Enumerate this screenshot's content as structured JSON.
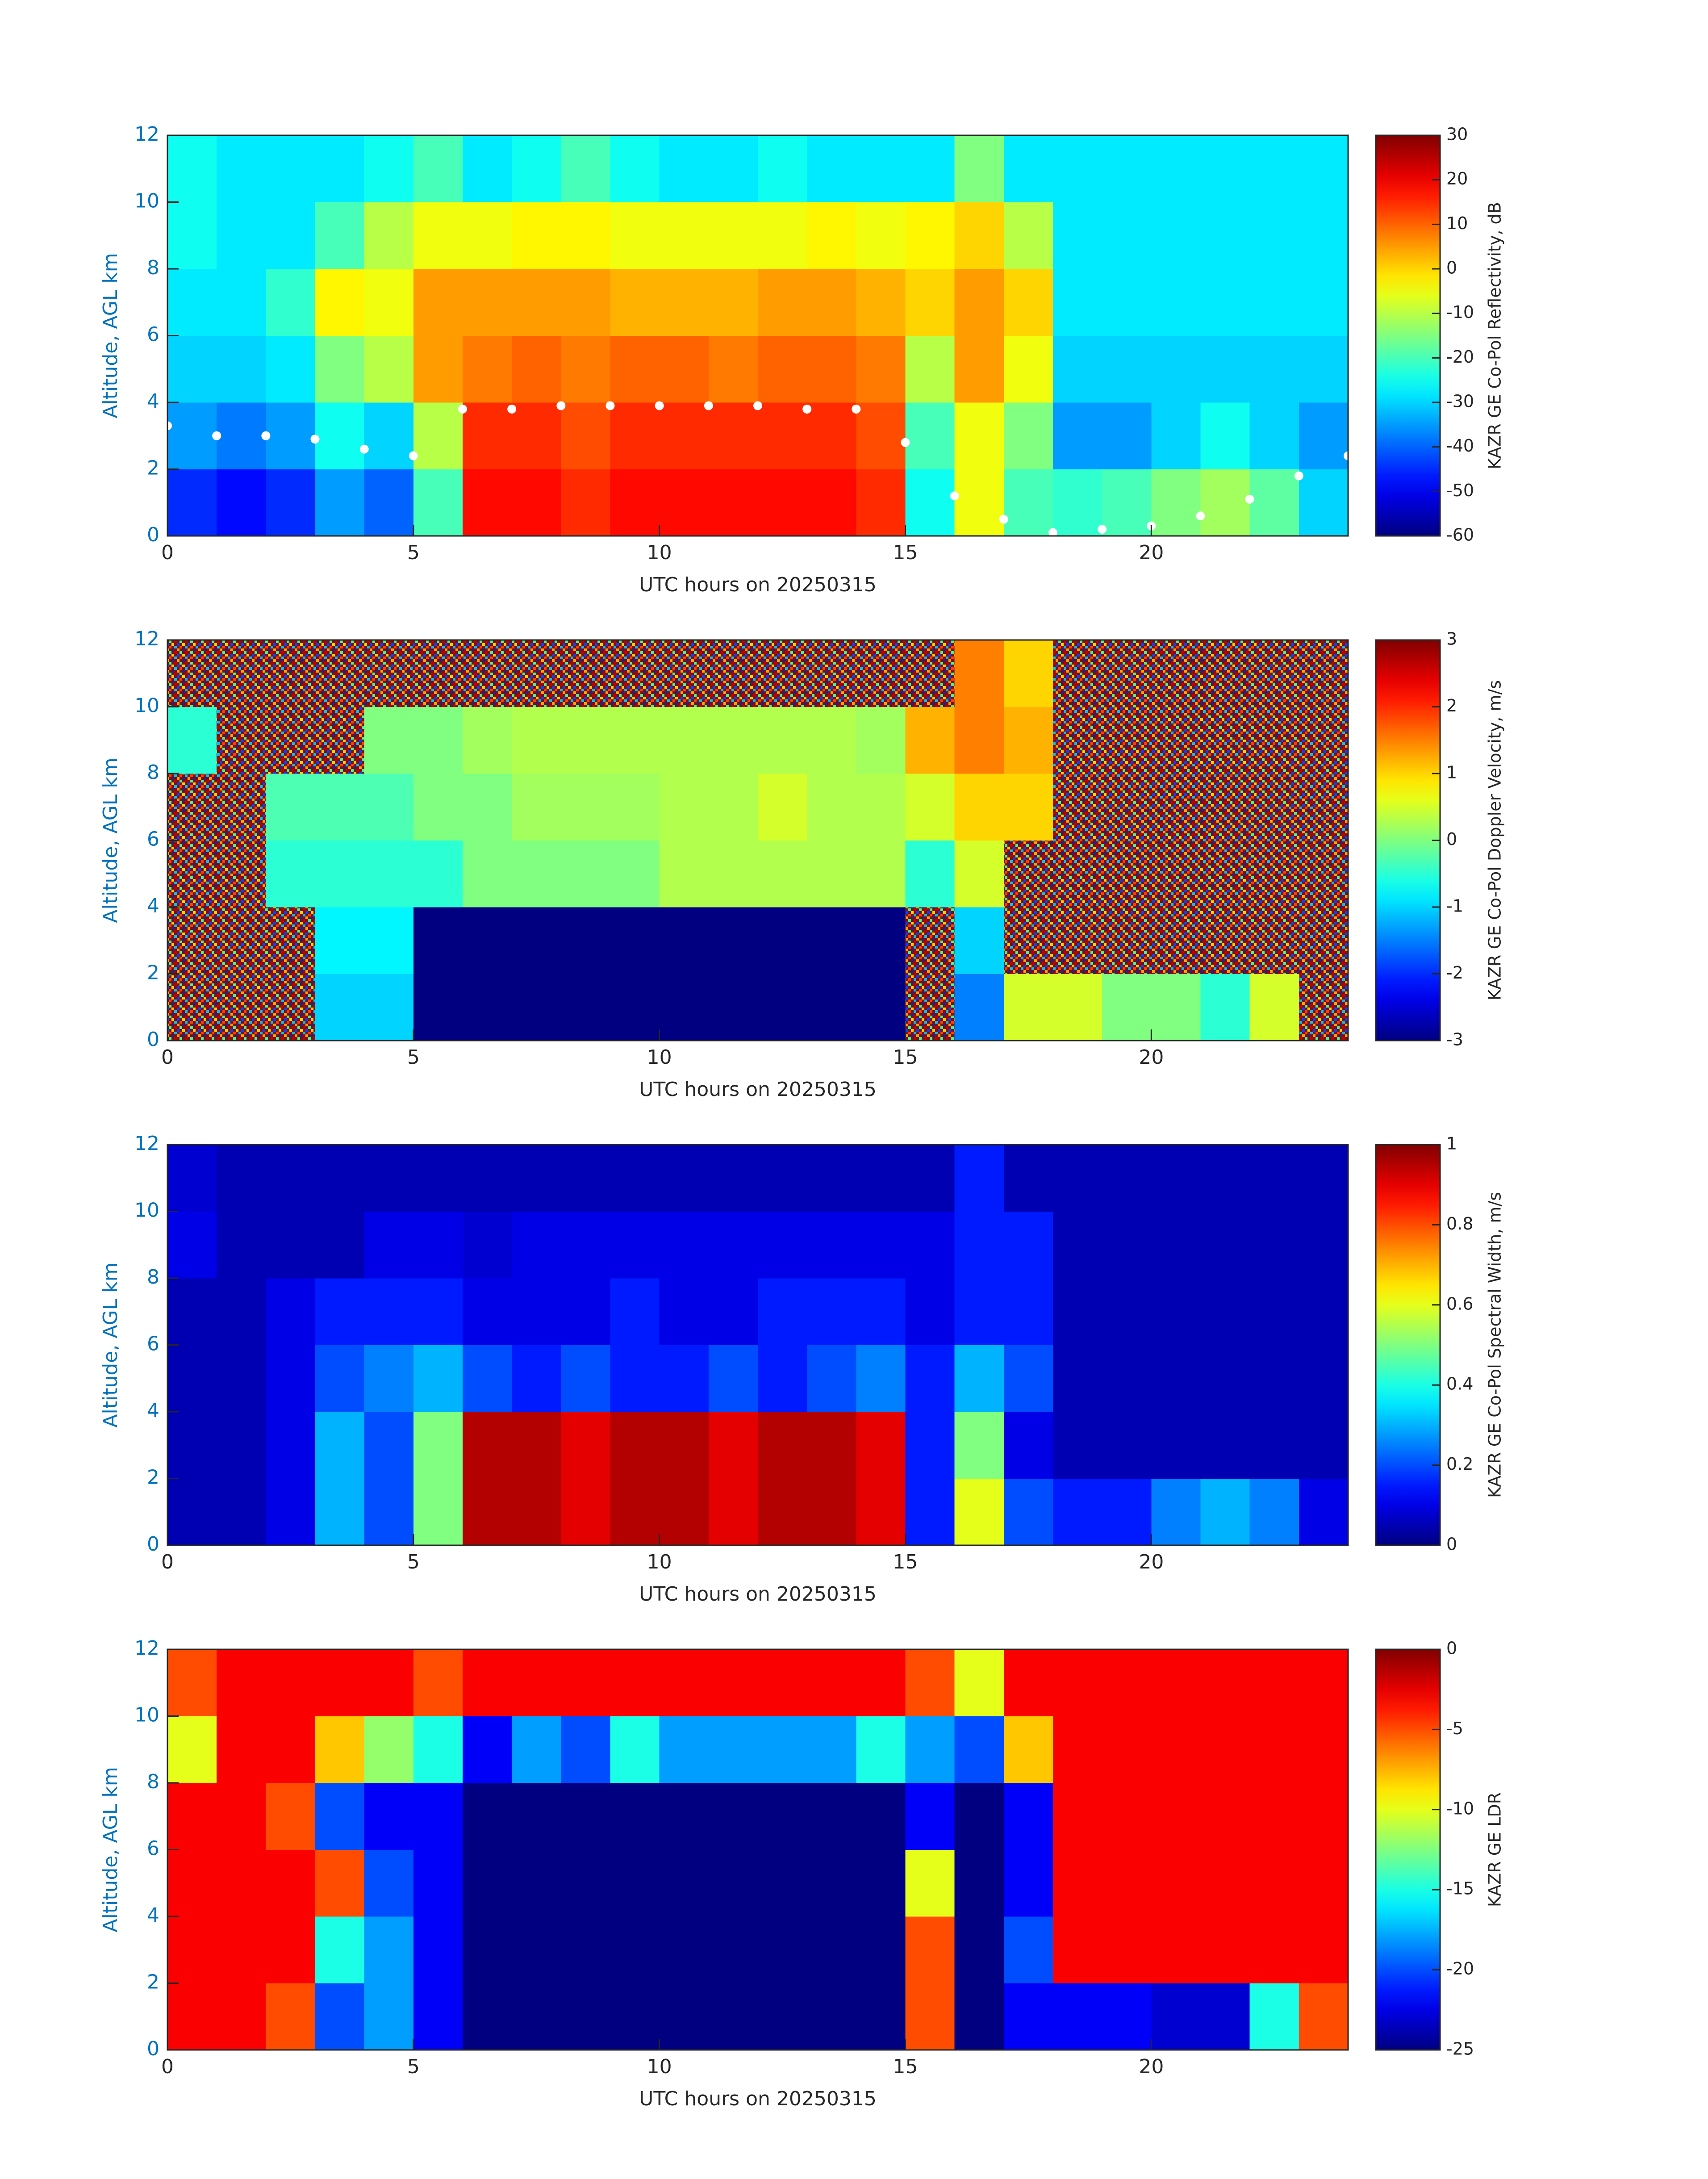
{
  "chart_data": [
    {
      "type": "heatmap",
      "colormap": "jet",
      "xlabel": "UTC hours on 20250315",
      "ylabel": "Altitude, AGL km",
      "xlim": [
        0,
        24
      ],
      "xticks": [
        0,
        5,
        10,
        15,
        20
      ],
      "ylim": [
        0,
        12
      ],
      "yticks": [
        0,
        2,
        4,
        6,
        8,
        10,
        12
      ],
      "xbins": [
        0,
        1,
        2,
        3,
        4,
        5,
        6,
        7,
        8,
        9,
        10,
        11,
        12,
        13,
        14,
        15,
        16,
        17,
        18,
        19,
        20,
        21,
        22,
        23,
        24
      ],
      "ybins": [
        0,
        2,
        4,
        6,
        8,
        10,
        12
      ],
      "z": [
        [
          -45,
          -48,
          -45,
          -35,
          -40,
          -20,
          18,
          18,
          15,
          18,
          18,
          18,
          18,
          18,
          15,
          -25,
          -5,
          -20,
          -22,
          -20,
          -15,
          -12,
          -18,
          -30
        ],
        [
          -35,
          -38,
          -35,
          -25,
          -30,
          -10,
          15,
          15,
          12,
          15,
          15,
          15,
          15,
          15,
          12,
          -20,
          -5,
          -15,
          -35,
          -35,
          -30,
          -25,
          -30,
          -35
        ],
        [
          -30,
          -30,
          -28,
          -15,
          -10,
          5,
          8,
          10,
          8,
          10,
          10,
          8,
          10,
          10,
          8,
          -10,
          5,
          -5,
          -30,
          -30,
          -30,
          -30,
          -30,
          -30
        ],
        [
          -28,
          -28,
          -22,
          -3,
          -5,
          5,
          5,
          5,
          5,
          3,
          3,
          3,
          5,
          5,
          3,
          0,
          5,
          0,
          -28,
          -28,
          -28,
          -28,
          -28,
          -28
        ],
        [
          -25,
          -28,
          -28,
          -20,
          -10,
          -5,
          -5,
          -3,
          -3,
          -5,
          -5,
          -5,
          -5,
          -3,
          -5,
          -3,
          0,
          -10,
          -28,
          -28,
          -28,
          -28,
          -28,
          -28
        ],
        [
          -25,
          -28,
          -28,
          -28,
          -25,
          -20,
          -28,
          -25,
          -20,
          -25,
          -28,
          -28,
          -25,
          -28,
          -28,
          -28,
          -15,
          -28,
          -28,
          -28,
          -28,
          -28,
          -28,
          -28
        ]
      ],
      "overlay": {
        "type": "scatter",
        "color": "#ffffff",
        "x": [
          0,
          1,
          2,
          3,
          4,
          5,
          6,
          7,
          8,
          9,
          10,
          11,
          12,
          13,
          14,
          15,
          16,
          17,
          18,
          19,
          20,
          21,
          22,
          23,
          24
        ],
        "values": [
          3.3,
          3,
          3,
          2.9,
          2.6,
          2.4,
          3.8,
          3.8,
          3.9,
          3.9,
          3.9,
          3.9,
          3.9,
          3.8,
          3.8,
          2.8,
          1.2,
          0.5,
          0.1,
          0.2,
          0.3,
          0.6,
          1.1,
          1.8,
          2.4
        ]
      },
      "colorbar": {
        "label": "KAZR GE Co-Pol Reflectivity, dB",
        "lim": [
          -60,
          30
        ],
        "ticks": [
          -60,
          -50,
          -40,
          -30,
          -20,
          -10,
          0,
          10,
          20,
          30
        ]
      }
    },
    {
      "type": "heatmap",
      "colormap": "jet",
      "xlabel": "UTC hours on 20250315",
      "ylabel": "Altitude, AGL km",
      "xlim": [
        0,
        24
      ],
      "xticks": [
        0,
        5,
        10,
        15,
        20
      ],
      "ylim": [
        0,
        12
      ],
      "yticks": [
        0,
        2,
        4,
        6,
        8,
        10,
        12
      ],
      "xbins": [
        0,
        1,
        2,
        3,
        4,
        5,
        6,
        7,
        8,
        9,
        10,
        11,
        12,
        13,
        14,
        15,
        16,
        17,
        18,
        19,
        20,
        21,
        22,
        23,
        24
      ],
      "ybins": [
        0,
        2,
        4,
        6,
        8,
        10,
        12
      ],
      "z": [
        [
          null,
          null,
          null,
          -1,
          -1,
          -3,
          -3,
          -3,
          -3,
          -3,
          -3,
          -3,
          -3,
          -3,
          -3,
          null,
          -1.5,
          0.5,
          0.5,
          0,
          0,
          -0.5,
          0.5,
          null
        ],
        [
          null,
          null,
          null,
          -0.8,
          -0.8,
          -3,
          -3,
          -3,
          -3,
          -3,
          -3,
          -3,
          -3,
          -3,
          -3,
          null,
          -1,
          null,
          null,
          null,
          null,
          null,
          null,
          null
        ],
        [
          null,
          null,
          -0.5,
          -0.5,
          -0.5,
          -0.5,
          0,
          0,
          0,
          0,
          0.3,
          0.3,
          0.3,
          0.3,
          0.3,
          -0.5,
          0.5,
          null,
          null,
          null,
          null,
          null,
          null,
          null
        ],
        [
          null,
          null,
          -0.3,
          -0.3,
          -0.3,
          0,
          0,
          0.2,
          0.2,
          0.2,
          0.3,
          0.3,
          0.5,
          0.3,
          0.3,
          0.5,
          1,
          1,
          null,
          null,
          null,
          null,
          null,
          null
        ],
        [
          -0.5,
          null,
          null,
          null,
          0,
          0,
          0.2,
          0.3,
          0.3,
          0.3,
          0.3,
          0.3,
          0.3,
          0.3,
          0.2,
          1.2,
          1.5,
          1.2,
          null,
          null,
          null,
          null,
          null,
          null
        ],
        [
          null,
          null,
          null,
          null,
          null,
          null,
          null,
          null,
          null,
          null,
          null,
          null,
          null,
          null,
          null,
          null,
          1.5,
          1,
          null,
          null,
          null,
          null,
          null,
          null
        ]
      ],
      "colorbar": {
        "label": "KAZR GE Co-Pol Doppler Velocity, m/s",
        "lim": [
          -3,
          3
        ],
        "ticks": [
          -3,
          -2,
          -1,
          0,
          1,
          2,
          3
        ]
      }
    },
    {
      "type": "heatmap",
      "colormap": "jet",
      "xlabel": "UTC hours on 20250315",
      "ylabel": "Altitude, AGL km",
      "xlim": [
        0,
        24
      ],
      "xticks": [
        0,
        5,
        10,
        15,
        20
      ],
      "ylim": [
        0,
        12
      ],
      "yticks": [
        0,
        2,
        4,
        6,
        8,
        10,
        12
      ],
      "xbins": [
        0,
        1,
        2,
        3,
        4,
        5,
        6,
        7,
        8,
        9,
        10,
        11,
        12,
        13,
        14,
        15,
        16,
        17,
        18,
        19,
        20,
        21,
        22,
        23,
        24
      ],
      "ybins": [
        0,
        2,
        4,
        6,
        8,
        10,
        12
      ],
      "z": [
        [
          0.05,
          0.05,
          0.1,
          0.3,
          0.2,
          0.5,
          0.95,
          0.95,
          0.9,
          0.95,
          0.95,
          0.9,
          0.95,
          0.95,
          0.9,
          0.15,
          0.6,
          0.2,
          0.15,
          0.15,
          0.25,
          0.3,
          0.25,
          0.1
        ],
        [
          0.05,
          0.05,
          0.1,
          0.3,
          0.2,
          0.5,
          0.95,
          0.95,
          0.9,
          0.95,
          0.95,
          0.9,
          0.95,
          0.95,
          0.9,
          0.15,
          0.5,
          0.1,
          0.05,
          0.05,
          0.05,
          0.05,
          0.05,
          0.05
        ],
        [
          0.05,
          0.05,
          0.1,
          0.2,
          0.25,
          0.3,
          0.2,
          0.15,
          0.2,
          0.15,
          0.15,
          0.2,
          0.15,
          0.2,
          0.25,
          0.15,
          0.3,
          0.2,
          0.05,
          0.05,
          0.05,
          0.05,
          0.05,
          0.05
        ],
        [
          0.05,
          0.05,
          0.1,
          0.15,
          0.15,
          0.15,
          0.1,
          0.1,
          0.1,
          0.15,
          0.1,
          0.1,
          0.15,
          0.15,
          0.15,
          0.1,
          0.15,
          0.15,
          0.05,
          0.05,
          0.05,
          0.05,
          0.05,
          0.05
        ],
        [
          0.1,
          0.05,
          0.05,
          0.05,
          0.1,
          0.1,
          0.08,
          0.1,
          0.1,
          0.1,
          0.1,
          0.1,
          0.1,
          0.1,
          0.1,
          0.1,
          0.15,
          0.15,
          0.05,
          0.05,
          0.05,
          0.05,
          0.05,
          0.05
        ],
        [
          0.08,
          0.05,
          0.05,
          0.05,
          0.05,
          0.05,
          0.05,
          0.05,
          0.05,
          0.05,
          0.05,
          0.05,
          0.05,
          0.05,
          0.05,
          0.05,
          0.15,
          0.05,
          0.05,
          0.05,
          0.05,
          0.05,
          0.05,
          0.05
        ]
      ],
      "colorbar": {
        "label": "KAZR GE Co-Pol Spectral Width, m/s",
        "lim": [
          0,
          1
        ],
        "ticks": [
          0,
          0.2,
          0.4,
          0.6,
          0.8,
          1
        ]
      }
    },
    {
      "type": "heatmap",
      "colormap": "jet",
      "xlabel": "UTC hours on 20250315",
      "ylabel": "Altitude, AGL km",
      "xlim": [
        0,
        24
      ],
      "xticks": [
        0,
        5,
        10,
        15,
        20
      ],
      "ylim": [
        0,
        12
      ],
      "yticks": [
        0,
        2,
        4,
        6,
        8,
        10,
        12
      ],
      "xbins": [
        0,
        1,
        2,
        3,
        4,
        5,
        6,
        7,
        8,
        9,
        10,
        11,
        12,
        13,
        14,
        15,
        16,
        17,
        18,
        19,
        20,
        21,
        22,
        23,
        24
      ],
      "ybins": [
        0,
        2,
        4,
        6,
        8,
        10,
        12
      ],
      "z": [
        [
          -3,
          -3,
          -5,
          -20,
          -18,
          -22,
          -25,
          -25,
          -25,
          -25,
          -25,
          -25,
          -25,
          -25,
          -25,
          -5,
          -25,
          -22,
          -22,
          -22,
          -23,
          -23,
          -15,
          -5
        ],
        [
          -3,
          -3,
          -3,
          -15,
          -18,
          -22,
          -25,
          -25,
          -25,
          -25,
          -25,
          -25,
          -25,
          -25,
          -25,
          -5,
          -25,
          -20,
          -3,
          -3,
          -3,
          -3,
          -3,
          -3
        ],
        [
          -3,
          -3,
          -3,
          -5,
          -20,
          -22,
          -25,
          -25,
          -25,
          -25,
          -25,
          -25,
          -25,
          -25,
          -25,
          -10,
          -25,
          -22,
          -3,
          -3,
          -3,
          -3,
          -3,
          -3
        ],
        [
          -3,
          -3,
          -5,
          -20,
          -22,
          -22,
          -25,
          -25,
          -25,
          -25,
          -25,
          -25,
          -25,
          -25,
          -25,
          -22,
          -25,
          -22,
          -3,
          -3,
          -3,
          -3,
          -3,
          -3
        ],
        [
          -10,
          -3,
          -3,
          -8,
          -12,
          -15,
          -22,
          -18,
          -20,
          -15,
          -18,
          -18,
          -18,
          -18,
          -15,
          -18,
          -20,
          -8,
          -3,
          -3,
          -3,
          -3,
          -3,
          -3
        ],
        [
          -5,
          -3,
          -3,
          -3,
          -3,
          -5,
          -3,
          -3,
          -3,
          -3,
          -3,
          -3,
          -3,
          -3,
          -3,
          -5,
          -10,
          -3,
          -3,
          -3,
          -3,
          -3,
          -3,
          -3
        ]
      ],
      "colorbar": {
        "label": "KAZR GE LDR",
        "lim": [
          -25,
          0
        ],
        "ticks": [
          -25,
          -20,
          -15,
          -10,
          -5,
          0
        ]
      }
    }
  ]
}
